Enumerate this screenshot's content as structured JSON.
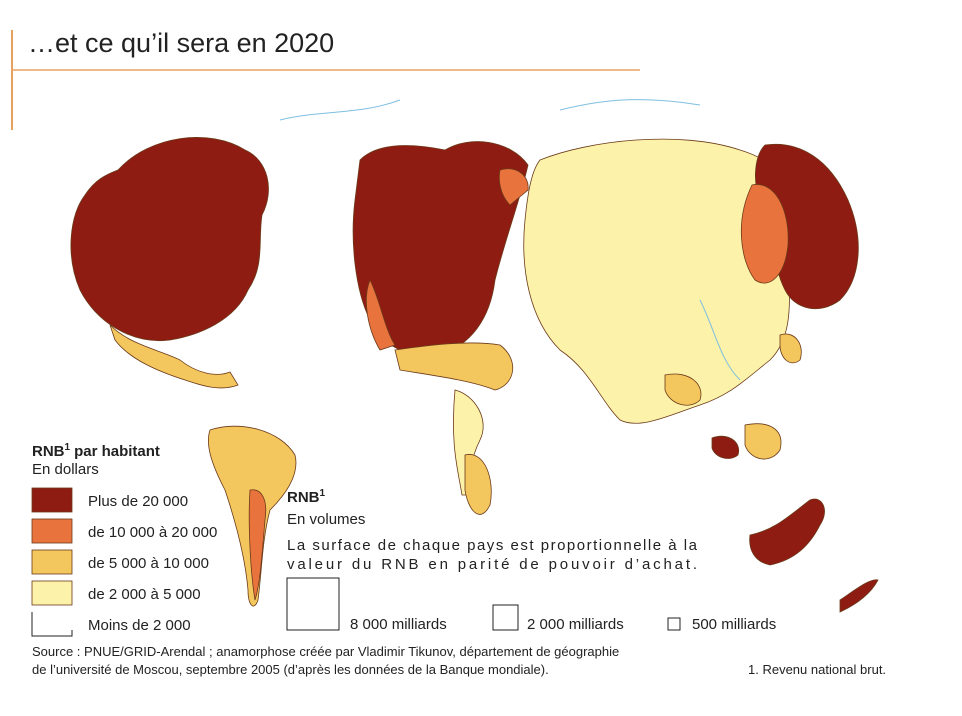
{
  "header": {
    "title": "…et ce qu’il sera en 2020"
  },
  "legend_income": {
    "title": "RNB",
    "note": "1",
    "title_rest": "par habitant",
    "subtitle": "En dollars",
    "items": [
      {
        "label": "Plus de 20 000",
        "color": "#8e1c12"
      },
      {
        "label": "de 10 000 à 20 000",
        "color": "#e9733c"
      },
      {
        "label": "de 5 000 à 10 000",
        "color": "#f3c65e"
      },
      {
        "label": "de 2 000 à 5 000",
        "color": "#fcf2a9"
      },
      {
        "label": "Moins de 2 000",
        "color": "#ffffff"
      }
    ]
  },
  "legend_volume": {
    "title": "RNB",
    "note": "1",
    "subtitle": "En volumes",
    "description": [
      "La surface de chaque pays est proportionnelle à la",
      "valeur du RNB en parité de pouvoir d’achat."
    ],
    "sizes": [
      "8 000 milliards",
      "2 000 milliards",
      "500 milliards"
    ]
  },
  "source": [
    "Source : PNUE/GRID-Arendal ; anamorphose créée par Vladimir Tikunov, département de géographie",
    "de l’université  de Moscou, septembre 2005 (d’après les données de la Banque mondiale)."
  ],
  "footnote": "1. Revenu national brut."
}
